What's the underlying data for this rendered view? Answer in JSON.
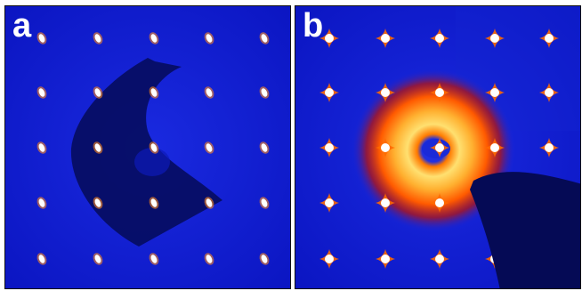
{
  "colors": {
    "background": "#0b14c8",
    "beamstop": "#050a55",
    "spot_core": "#ffffff",
    "halo_inner": "#ffee80",
    "halo_mid": "#ff8a00",
    "halo_outer": "#d21a00",
    "center_hole": "#1a2ad8"
  },
  "panels": [
    {
      "label": "a",
      "description_icon": "diffraction-pattern-image",
      "has_halo": false
    },
    {
      "label": "b",
      "description_icon": "diffraction-pattern-image",
      "has_halo": true
    }
  ]
}
